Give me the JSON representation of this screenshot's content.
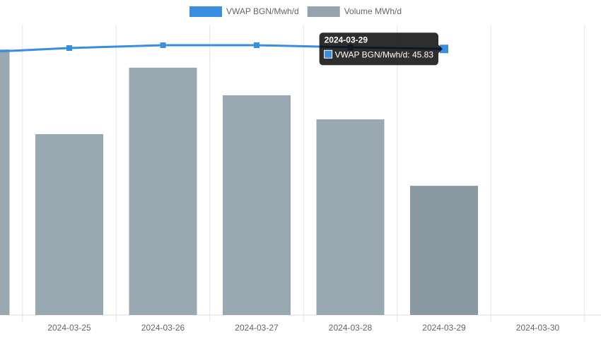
{
  "chart_data": {
    "type": "bar",
    "categories": [
      null,
      "2024-03-25",
      "2024-03-26",
      "2024-03-27",
      "2024-03-28",
      "2024-03-29",
      "2024-03-30"
    ],
    "series": [
      {
        "name": "VWAP BGN/Mwh/d",
        "type": "line",
        "axis": "y2",
        "color": "#3a8ee0",
        "values": [
          45.2,
          45.98,
          46.47,
          46.47,
          46.1,
          45.83,
          null
        ]
      },
      {
        "name": "Volume MWh/d",
        "type": "bar",
        "color": "#94a3ad",
        "values": [
          91.5,
          62.3,
          85.2,
          75.7,
          67.4,
          44.5,
          null
        ]
      }
    ],
    "ylim": [
      0,
      100
    ],
    "y2lim": [
      0,
      50
    ],
    "grid": true,
    "legend": "top",
    "tooltip": {
      "title": "2024-03-29",
      "text": "VWAP BGN/Mwh/d: 45.83"
    }
  }
}
